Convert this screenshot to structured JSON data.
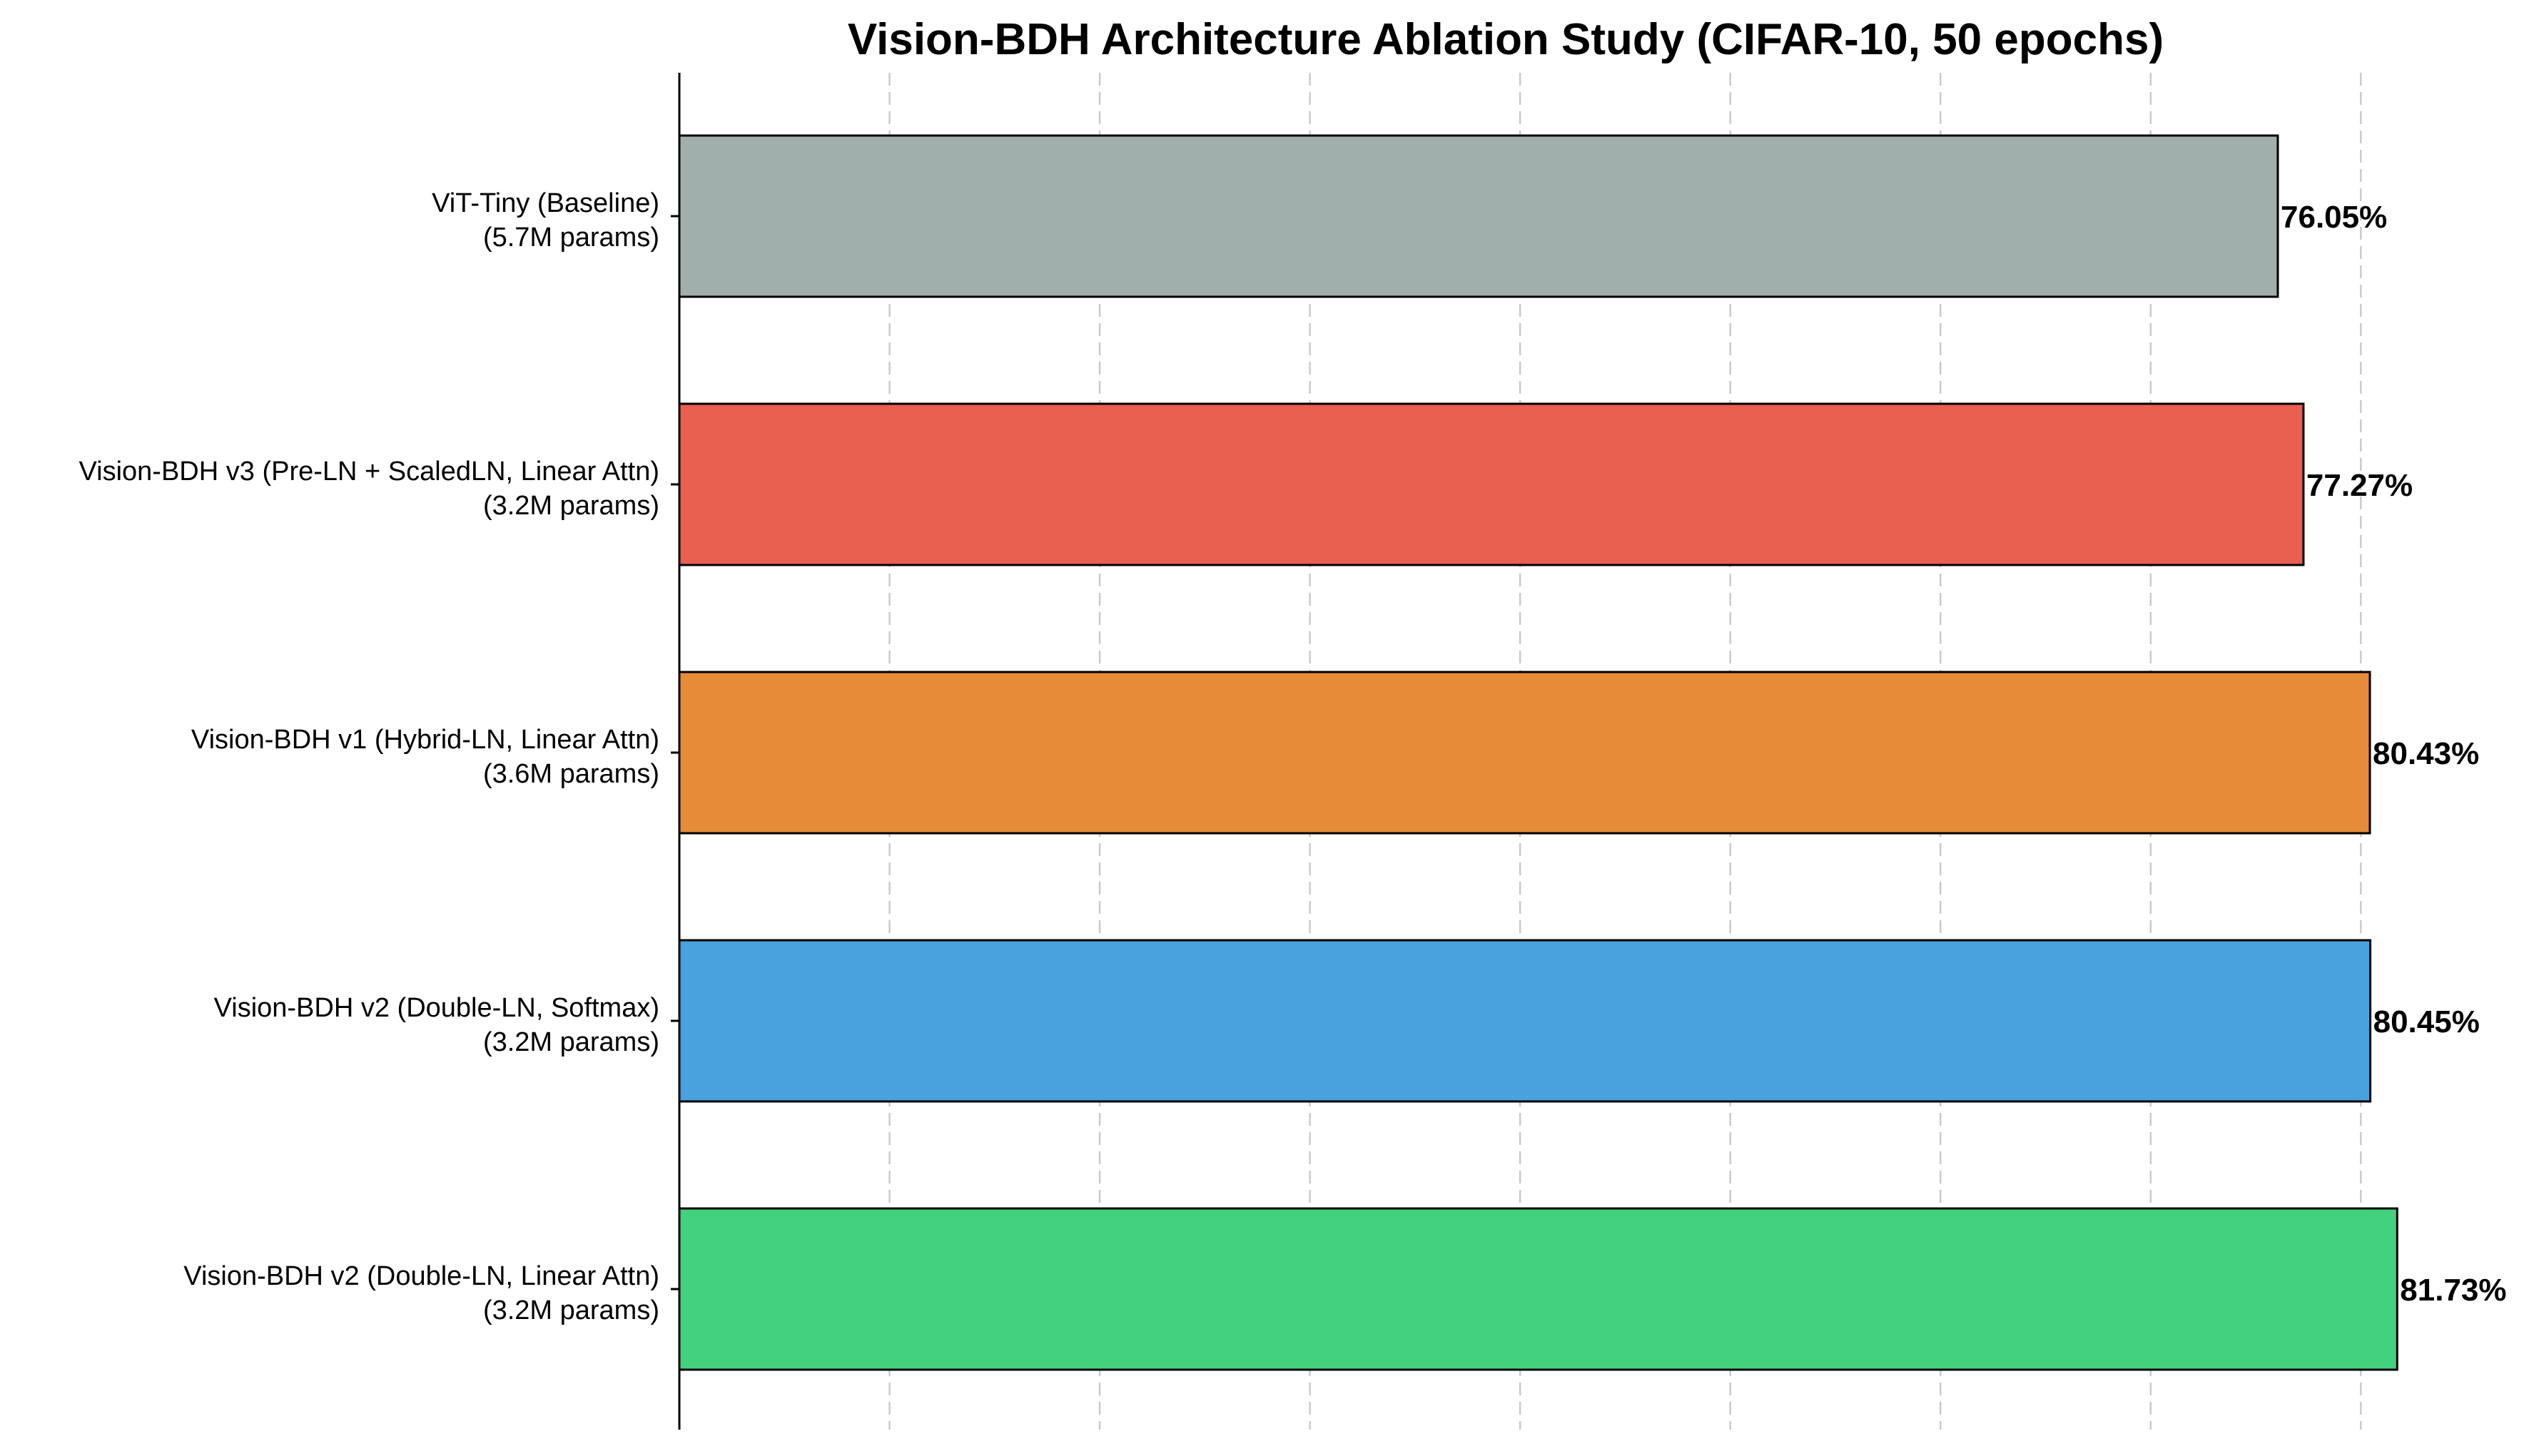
{
  "chart_data": {
    "type": "bar",
    "orientation": "horizontal",
    "title": "Vision-BDH Architecture Ablation Study (CIFAR-10, 50 epochs)",
    "xlabel": "",
    "ylabel": "",
    "xlim": [
      0,
      85
    ],
    "grid": "x, dashed",
    "value_suffix": "%",
    "categories": [
      {
        "line1": "ViT-Tiny (Baseline)",
        "line2": "(5.7M params)"
      },
      {
        "line1": "Vision-BDH v3 (Pre-LN + ScaledLN, Linear Attn)",
        "line2": "(3.2M params)"
      },
      {
        "line1": "Vision-BDH v1 (Hybrid-LN, Linear Attn)",
        "line2": "(3.6M params)"
      },
      {
        "line1": "Vision-BDH v2 (Double-LN, Softmax)",
        "line2": "(3.2M params)"
      },
      {
        "line1": "Vision-BDH v2 (Double-LN, Linear Attn)",
        "line2": "(3.2M params)"
      }
    ],
    "values": [
      76.05,
      77.27,
      80.43,
      80.45,
      81.73
    ],
    "value_labels": [
      "76.05%",
      "77.27%",
      "80.43%",
      "80.45%",
      "81.73%"
    ],
    "colors": [
      "#a0aeac",
      "#e95f50",
      "#e68b36",
      "#49a1dd",
      "#44d17d"
    ]
  }
}
